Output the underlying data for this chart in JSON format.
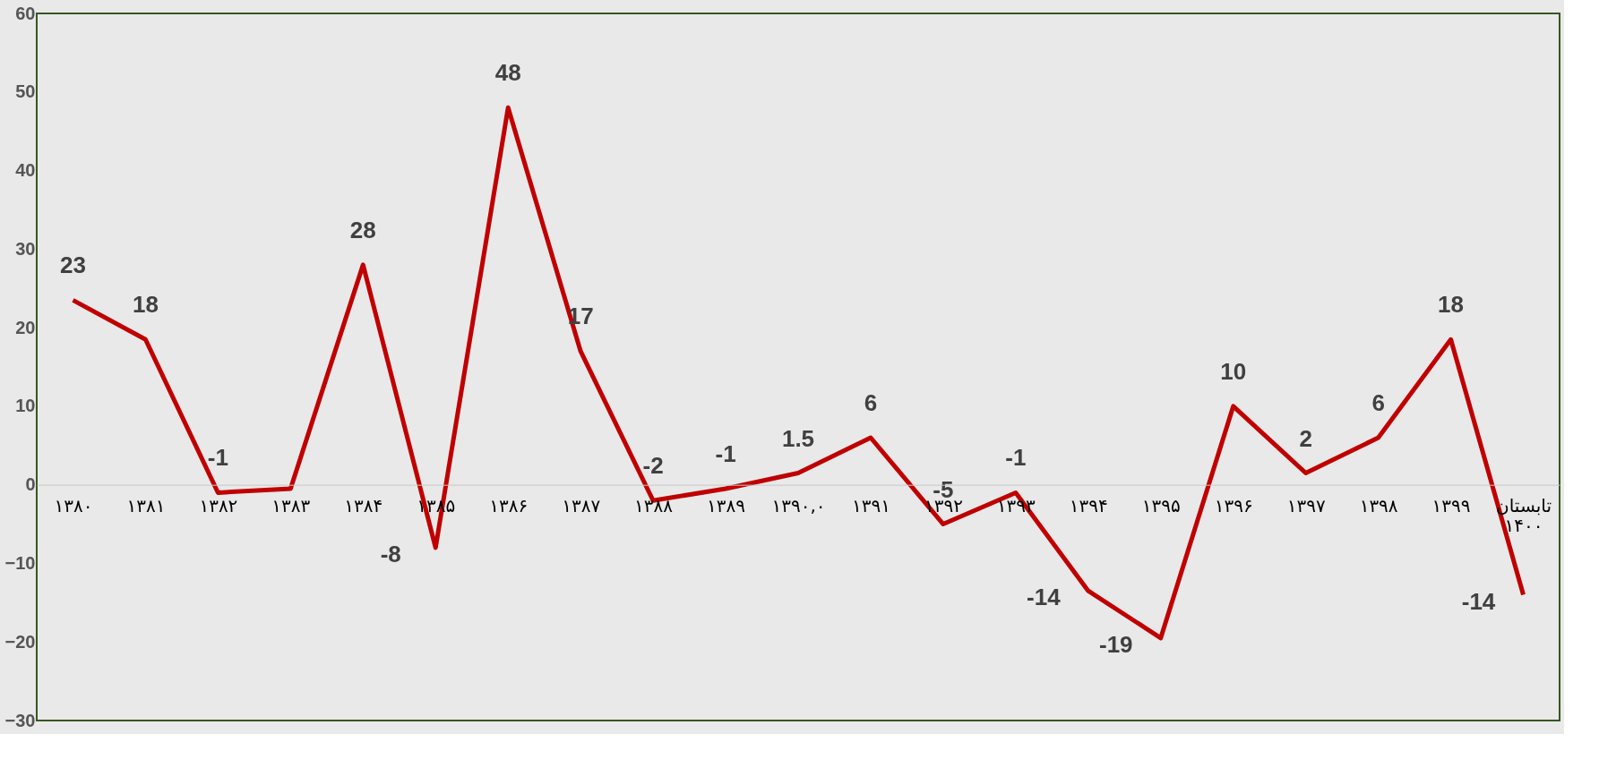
{
  "chart_data": {
    "type": "line",
    "categories": [
      "۱۳۸۰",
      "۱۳۸۱",
      "۱۳۸۲",
      "۱۳۸۳",
      "۱۳۸۴",
      "۱۳۸۵",
      "۱۳۸۶",
      "۱۳۸۷",
      "۱۳۸۸",
      "۱۳۸۹",
      "۱۳۹۰,۰",
      "۱۳۹۱",
      "۱۳۹۲",
      "۱۳۹۳",
      "۱۳۹۴",
      "۱۳۹۵",
      "۱۳۹۶",
      "۱۳۹۷",
      "۱۳۹۸",
      "۱۳۹۹",
      "تابستان ۱۴۰۰"
    ],
    "series": [
      {
        "color": "#c00000",
        "values": [
          23.5,
          18.5,
          -1,
          -0.5,
          28,
          -8,
          48,
          17,
          -2,
          -0.5,
          1.5,
          6,
          -5,
          -1,
          -13.5,
          -19.5,
          10,
          1.5,
          6,
          18.5,
          -14
        ]
      }
    ],
    "value_labels": [
      "23",
      "18",
      "-1",
      null,
      "28",
      "-8",
      "48",
      "17",
      "-2",
      "-1",
      "1.5",
      "6",
      "-5",
      "-1",
      "-14",
      "-19",
      "10",
      "2",
      "6",
      "18",
      "-14"
    ],
    "ylim": [
      -30,
      60
    ],
    "yticks": [
      -30,
      -20,
      -10,
      0,
      10,
      20,
      30,
      40,
      50,
      60
    ],
    "grid": false,
    "marker": "none",
    "line_style": "solid"
  }
}
